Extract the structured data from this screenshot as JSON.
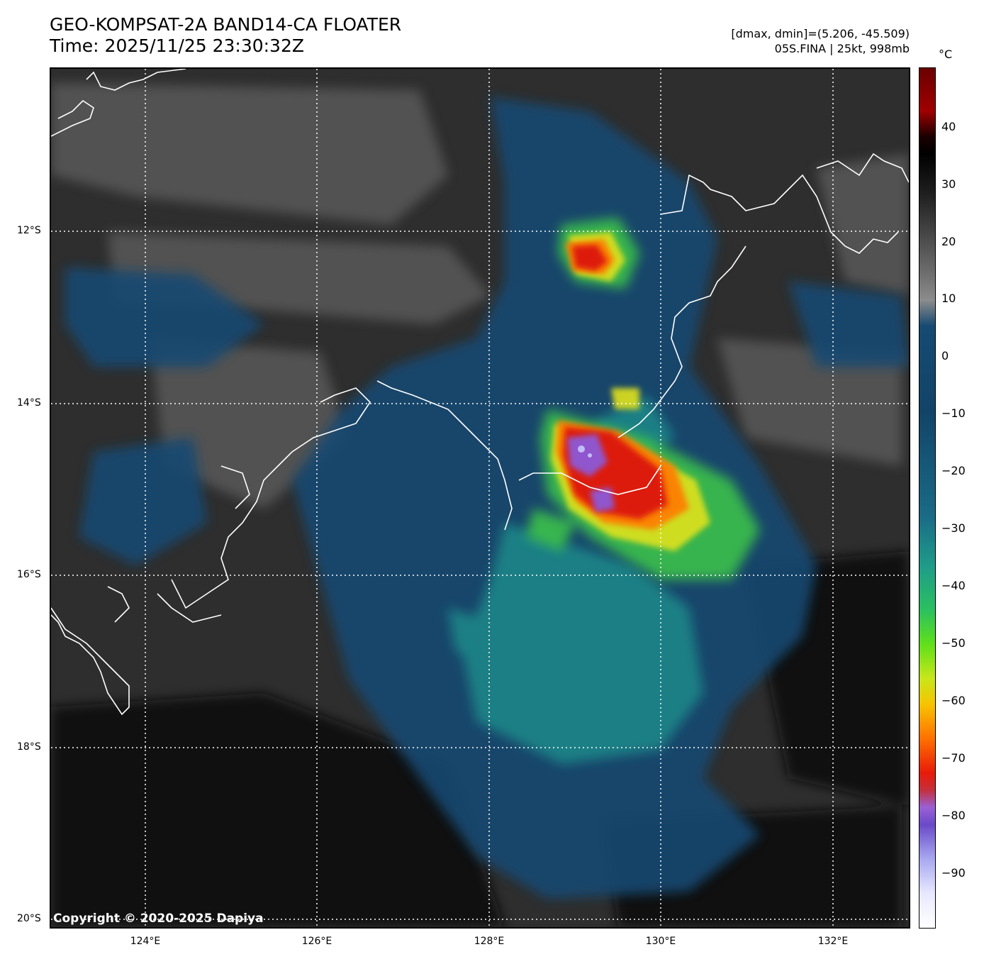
{
  "header": {
    "title_line1": "GEO-KOMPSAT-2A BAND14-CA FLOATER",
    "title_line2": "Time: 2025/11/25 23:30:32Z",
    "info_line1": "[dmax, dmin]=(5.206, -45.509)",
    "info_line2": "05S.FINA | 25kt, 998mb"
  },
  "map": {
    "lat_labels": [
      "12°S",
      "14°S",
      "16°S",
      "18°S",
      "20°S"
    ],
    "lon_labels": [
      "124°E",
      "126°E",
      "128°E",
      "130°E",
      "132°E"
    ],
    "copyright": "Copyright © 2020-2025 Dapiya"
  },
  "colorbar": {
    "unit": "°C",
    "ticks": [
      "40",
      "30",
      "20",
      "10",
      "0",
      "−10",
      "−20",
      "−30",
      "−40",
      "−50",
      "−60",
      "−70",
      "−80",
      "−90"
    ]
  },
  "colors": {
    "clear_sky": "#2e2e2e",
    "cloud_blue": "#154a70",
    "cold_green": "#2aa070",
    "very_cold_yellow": "#d8e61a",
    "extreme_red": "#e0180a",
    "overshoot_purple": "#8a5ad8",
    "coastline": "#ffffff"
  }
}
